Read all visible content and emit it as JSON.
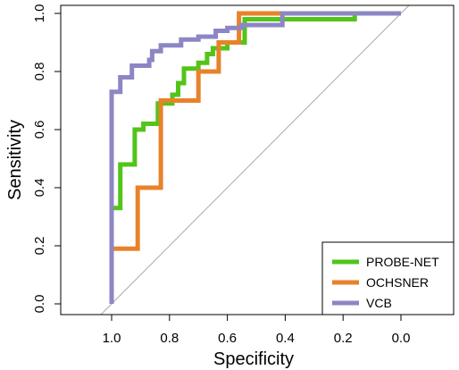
{
  "chart_data": {
    "type": "line",
    "title": "",
    "xlabel": "Specificity",
    "ylabel": "Sensitivity",
    "x_reversed": true,
    "xlim": [
      1.2,
      -0.2
    ],
    "ylim": [
      0.0,
      1.0
    ],
    "x_ticks": [
      1.0,
      0.8,
      0.6,
      0.4,
      0.2,
      0.0
    ],
    "x_tick_labels": [
      "1.0",
      "0.8",
      "0.6",
      "0.4",
      "0.2",
      "0.0"
    ],
    "y_ticks": [
      0.0,
      0.2,
      0.4,
      0.6,
      0.8,
      1.0
    ],
    "y_tick_labels": [
      "0.0",
      "0.2",
      "0.4",
      "0.6",
      "0.8",
      "1.0"
    ],
    "reference_line": {
      "from": [
        1.0,
        0.0
      ],
      "to": [
        0.0,
        1.0
      ],
      "color": "#aaaaaa"
    },
    "grid": false,
    "legend_position": "bottom-right",
    "series": [
      {
        "name": "PROBE-NET",
        "color": "#52c41a",
        "points": [
          [
            1.0,
            0.0
          ],
          [
            1.0,
            0.33
          ],
          [
            0.97,
            0.33
          ],
          [
            0.97,
            0.48
          ],
          [
            0.92,
            0.48
          ],
          [
            0.92,
            0.6
          ],
          [
            0.89,
            0.6
          ],
          [
            0.89,
            0.62
          ],
          [
            0.84,
            0.62
          ],
          [
            0.84,
            0.69
          ],
          [
            0.79,
            0.69
          ],
          [
            0.79,
            0.72
          ],
          [
            0.77,
            0.72
          ],
          [
            0.77,
            0.76
          ],
          [
            0.75,
            0.76
          ],
          [
            0.75,
            0.81
          ],
          [
            0.7,
            0.81
          ],
          [
            0.7,
            0.83
          ],
          [
            0.67,
            0.83
          ],
          [
            0.67,
            0.86
          ],
          [
            0.65,
            0.86
          ],
          [
            0.65,
            0.88
          ],
          [
            0.6,
            0.88
          ],
          [
            0.6,
            0.9
          ],
          [
            0.54,
            0.9
          ],
          [
            0.54,
            0.98
          ],
          [
            0.16,
            0.98
          ],
          [
            0.16,
            1.0
          ],
          [
            0.0,
            1.0
          ]
        ]
      },
      {
        "name": "OCHSNER",
        "color": "#e8822a",
        "points": [
          [
            1.0,
            0.0
          ],
          [
            1.0,
            0.19
          ],
          [
            0.91,
            0.19
          ],
          [
            0.91,
            0.4
          ],
          [
            0.83,
            0.4
          ],
          [
            0.83,
            0.7
          ],
          [
            0.7,
            0.7
          ],
          [
            0.7,
            0.8
          ],
          [
            0.63,
            0.8
          ],
          [
            0.63,
            0.9
          ],
          [
            0.56,
            0.9
          ],
          [
            0.56,
            1.0
          ],
          [
            0.0,
            1.0
          ]
        ]
      },
      {
        "name": "VCB",
        "color": "#8c86c4",
        "points": [
          [
            1.0,
            0.0
          ],
          [
            1.0,
            0.73
          ],
          [
            0.97,
            0.73
          ],
          [
            0.97,
            0.78
          ],
          [
            0.93,
            0.78
          ],
          [
            0.93,
            0.82
          ],
          [
            0.87,
            0.82
          ],
          [
            0.87,
            0.84
          ],
          [
            0.86,
            0.84
          ],
          [
            0.86,
            0.87
          ],
          [
            0.83,
            0.87
          ],
          [
            0.83,
            0.89
          ],
          [
            0.76,
            0.89
          ],
          [
            0.76,
            0.91
          ],
          [
            0.7,
            0.91
          ],
          [
            0.7,
            0.92
          ],
          [
            0.64,
            0.92
          ],
          [
            0.64,
            0.94
          ],
          [
            0.6,
            0.94
          ],
          [
            0.6,
            0.95
          ],
          [
            0.55,
            0.95
          ],
          [
            0.55,
            0.96
          ],
          [
            0.41,
            0.96
          ],
          [
            0.41,
            1.0
          ],
          [
            0.0,
            1.0
          ]
        ]
      }
    ]
  }
}
